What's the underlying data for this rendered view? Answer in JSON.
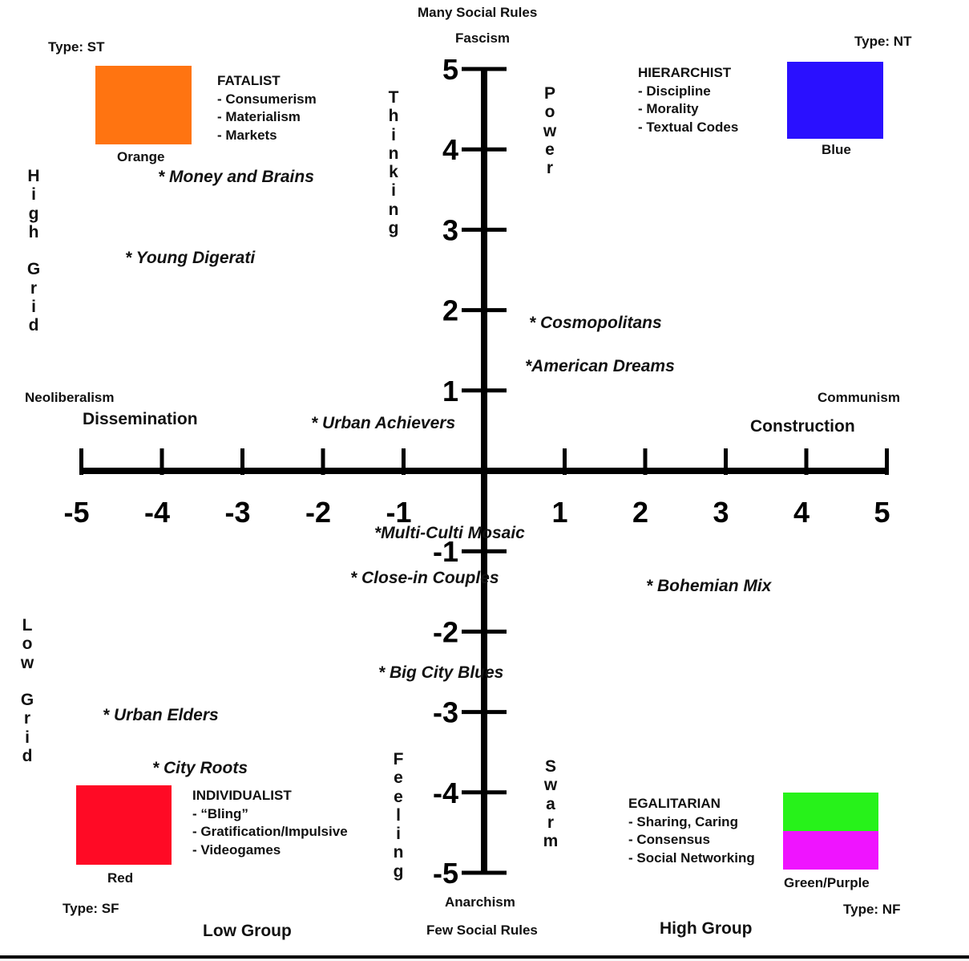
{
  "top": {
    "rule": "Many Social Rules",
    "ideology": "Fascism"
  },
  "bottom": {
    "ideology": "Anarchism",
    "rule": "Few Social Rules"
  },
  "left": {
    "ideology": "Neoliberalism",
    "process": "Dissemination"
  },
  "right": {
    "ideology": "Communism",
    "process": "Construction"
  },
  "group_labels": {
    "low": "Low Group",
    "high": "High Group"
  },
  "grid_labels": {
    "high": "High Grid",
    "low": "Low Grid"
  },
  "axis_words": {
    "thinking": "Thinking",
    "power": "Power",
    "feeling": "Feeling",
    "swarm": "Swarm"
  },
  "axes": {
    "x_ticks": [
      "-5",
      "-4",
      "-3",
      "-2",
      "-1",
      "1",
      "2",
      "3",
      "4",
      "5"
    ],
    "y_ticks": [
      "5",
      "4",
      "3",
      "2",
      "1",
      "-1",
      "-2",
      "-3",
      "-4",
      "-5"
    ]
  },
  "quadrants": {
    "fatalist": {
      "type": "Type: ST",
      "title": "FATALIST",
      "items": [
        "- Consumerism",
        "- Materialism",
        "- Markets"
      ],
      "color_name": "Orange",
      "colors": [
        "#ff7411"
      ]
    },
    "hierarchist": {
      "type": "Type: NT",
      "title": "HIERARCHIST",
      "items": [
        "- Discipline",
        "- Morality",
        "- Textual Codes"
      ],
      "color_name": "Blue",
      "colors": [
        "#2a10ff"
      ]
    },
    "individualist": {
      "type": "Type: SF",
      "title": "INDIVIDUALIST",
      "items": [
        "- “Bling”",
        "- Gratification/Impulsive",
        "- Videogames"
      ],
      "color_name": "Red",
      "colors": [
        "#ff0a25"
      ]
    },
    "egalitarian": {
      "type": "Type: NF",
      "title": "EGALITARIAN",
      "items": [
        "- Sharing, Caring",
        "- Consensus",
        "- Social Networking"
      ],
      "color_name": "Green/Purple",
      "colors": [
        "#27f21a",
        "#ef14ff"
      ]
    }
  },
  "segments": [
    "* Money and Brains",
    "* Young Digerati",
    "* Cosmopolitans",
    "*American Dreams",
    "* Urban Achievers",
    "*Multi-Culti Mosaic",
    "* Close-in Couples",
    "* Bohemian Mix",
    "* Big City Blues",
    "* Urban Elders",
    "* City Roots"
  ]
}
